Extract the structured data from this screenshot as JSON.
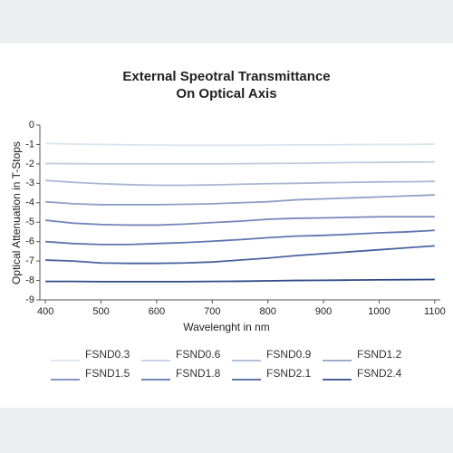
{
  "chart_data": {
    "type": "line",
    "title": [
      "External Speotral Transmittance",
      "On Optical Axis"
    ],
    "x_label": "Wavelenght in nm",
    "y_label": "Optical Attenuation in T-Stops",
    "x": [
      400,
      450,
      500,
      550,
      600,
      650,
      700,
      750,
      800,
      850,
      900,
      950,
      1000,
      1050,
      1100
    ],
    "xlim": [
      390,
      1110
    ],
    "xticks": [
      400,
      500,
      600,
      700,
      800,
      900,
      1000,
      1100
    ],
    "ylim": [
      -9,
      0
    ],
    "yticks": [
      0,
      -1,
      -2,
      -3,
      -4,
      -5,
      -6,
      -7,
      -8,
      -9
    ],
    "grid": false,
    "series": [
      {
        "name": "FSND0.3",
        "color": "#dde3ee",
        "values": [
          -0.95,
          -0.98,
          -1.0,
          -1.02,
          -1.03,
          -1.04,
          -1.04,
          -1.04,
          -1.03,
          -1.02,
          -1.02,
          -1.01,
          -1.0,
          -1.0,
          -0.98
        ]
      },
      {
        "name": "FSND0.6",
        "color": "#c3cde2",
        "values": [
          -1.98,
          -1.99,
          -2.0,
          -2.0,
          -2.0,
          -2.0,
          -2.0,
          -1.99,
          -1.98,
          -1.97,
          -1.95,
          -1.93,
          -1.92,
          -1.91,
          -1.9
        ]
      },
      {
        "name": "FSND0.9",
        "color": "#a9b6d3",
        "values": [
          -2.85,
          -2.95,
          -3.02,
          -3.07,
          -3.1,
          -3.1,
          -3.08,
          -3.05,
          -3.02,
          -3.0,
          -2.97,
          -2.95,
          -2.93,
          -2.92,
          -2.9
        ]
      },
      {
        "name": "FSND1.2",
        "color": "#8f9fc6",
        "values": [
          -3.95,
          -4.05,
          -4.1,
          -4.1,
          -4.1,
          -4.08,
          -4.05,
          -4.0,
          -3.95,
          -3.85,
          -3.8,
          -3.75,
          -3.7,
          -3.65,
          -3.6
        ]
      },
      {
        "name": "FSND1.5",
        "color": "#7588bb",
        "values": [
          -4.9,
          -5.05,
          -5.12,
          -5.15,
          -5.15,
          -5.1,
          -5.02,
          -4.95,
          -4.85,
          -4.8,
          -4.78,
          -4.75,
          -4.72,
          -4.72,
          -4.72
        ]
      },
      {
        "name": "FSND1.8",
        "color": "#5f75ae",
        "values": [
          -6.0,
          -6.1,
          -6.15,
          -6.15,
          -6.1,
          -6.05,
          -5.98,
          -5.9,
          -5.8,
          -5.72,
          -5.68,
          -5.62,
          -5.55,
          -5.5,
          -5.42
        ]
      },
      {
        "name": "FSND2.1",
        "color": "#4a629f",
        "values": [
          -6.95,
          -7.0,
          -7.1,
          -7.12,
          -7.12,
          -7.1,
          -7.05,
          -6.95,
          -6.85,
          -6.72,
          -6.62,
          -6.52,
          -6.42,
          -6.32,
          -6.22
        ]
      },
      {
        "name": "FSND2.4",
        "color": "#2e4a87",
        "values": [
          -8.05,
          -8.05,
          -8.06,
          -8.06,
          -8.06,
          -8.06,
          -8.05,
          -8.04,
          -8.02,
          -8.0,
          -7.99,
          -7.98,
          -7.97,
          -7.96,
          -7.95
        ]
      }
    ]
  }
}
